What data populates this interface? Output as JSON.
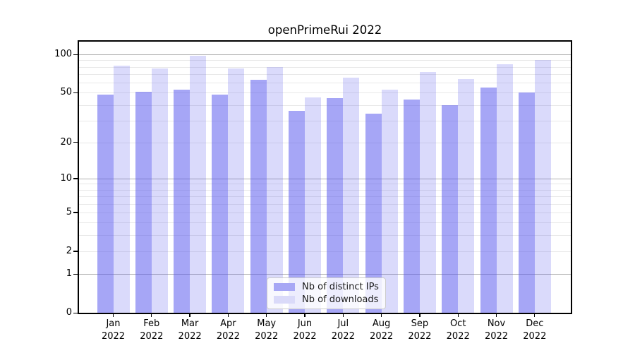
{
  "chart_data": {
    "type": "bar",
    "title": "openPrimeRui 2022",
    "categories": [
      "Jan",
      "Feb",
      "Mar",
      "Apr",
      "May",
      "Jun",
      "Jul",
      "Aug",
      "Sep",
      "Oct",
      "Nov",
      "Dec"
    ],
    "year": "2022",
    "series": [
      {
        "name": "Nb of distinct IPs",
        "base_color": "#5555ee",
        "fill": "rgba(85,85,238,0.52)",
        "swatch": "#a7a7f5",
        "values": [
          48,
          51,
          53,
          48,
          63,
          36,
          45,
          34,
          44,
          40,
          55,
          50
        ]
      },
      {
        "name": "Nb of downloads",
        "base_color": "#5555ee",
        "fill": "rgba(85,85,238,0.22)",
        "swatch": "#dadaf9",
        "values": [
          82,
          78,
          98,
          78,
          80,
          46,
          66,
          53,
          73,
          64,
          84,
          90
        ]
      }
    ],
    "yscale": "symlog (y proportional to log10(1+v))",
    "y_ticks": [
      0,
      1,
      2,
      5,
      10,
      20,
      50,
      100
    ],
    "ylim": [
      0,
      126
    ],
    "grid": {
      "major_at": [
        1,
        10,
        100
      ],
      "minor_at": [
        2,
        3,
        4,
        5,
        6,
        7,
        8,
        9,
        20,
        30,
        40,
        50,
        60,
        70,
        80,
        90
      ],
      "major_color": "#b0b0b0",
      "minor_color": "#e8e8e8"
    },
    "legend": {
      "position": "lower-center",
      "entries": [
        "Nb of distinct IPs",
        "Nb of downloads"
      ]
    }
  }
}
